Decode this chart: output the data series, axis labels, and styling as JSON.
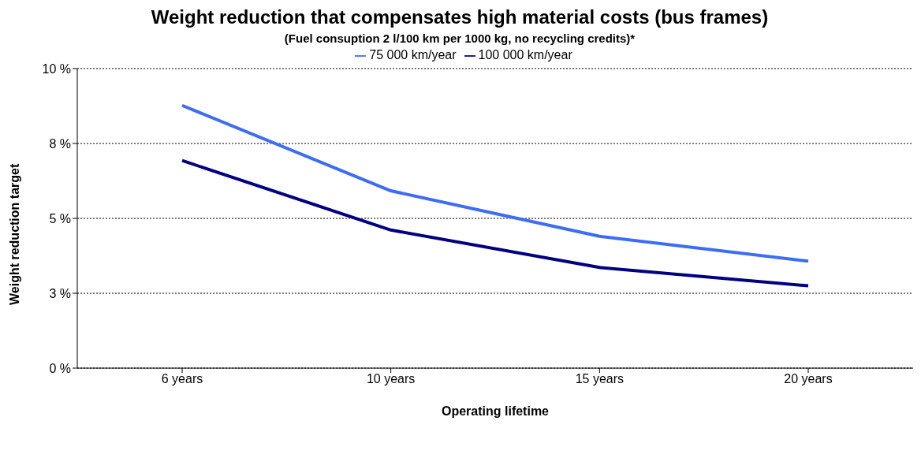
{
  "chart_data": {
    "type": "line",
    "title": "Weight reduction that compensates high material costs (bus frames)",
    "subtitle": "(Fuel consuption 2 l/100 km per 1000 kg, no recycling credits)*",
    "xlabel": "Operating lifetime",
    "ylabel": "Weight reduction target",
    "categories": [
      "6 years",
      "10 years",
      "15 years",
      "20 years"
    ],
    "series": [
      {
        "name": "75 000 km/year",
        "color": "#3d6cf5",
        "values": [
          8.77,
          5.92,
          4.4,
          3.57
        ]
      },
      {
        "name": "100 000 km/year",
        "color": "#000080",
        "values": [
          6.93,
          4.61,
          3.36,
          2.75
        ]
      }
    ],
    "ylim": [
      0,
      10
    ],
    "yticks": [
      {
        "value": 0,
        "label": "0 %"
      },
      {
        "value": 2.5,
        "label": "3 %"
      },
      {
        "value": 5,
        "label": "5 %"
      },
      {
        "value": 7.5,
        "label": "8 %"
      },
      {
        "value": 10,
        "label": "10 %"
      }
    ],
    "grid": "y",
    "legend": "top",
    "marker": "none",
    "line_style": "solid"
  }
}
